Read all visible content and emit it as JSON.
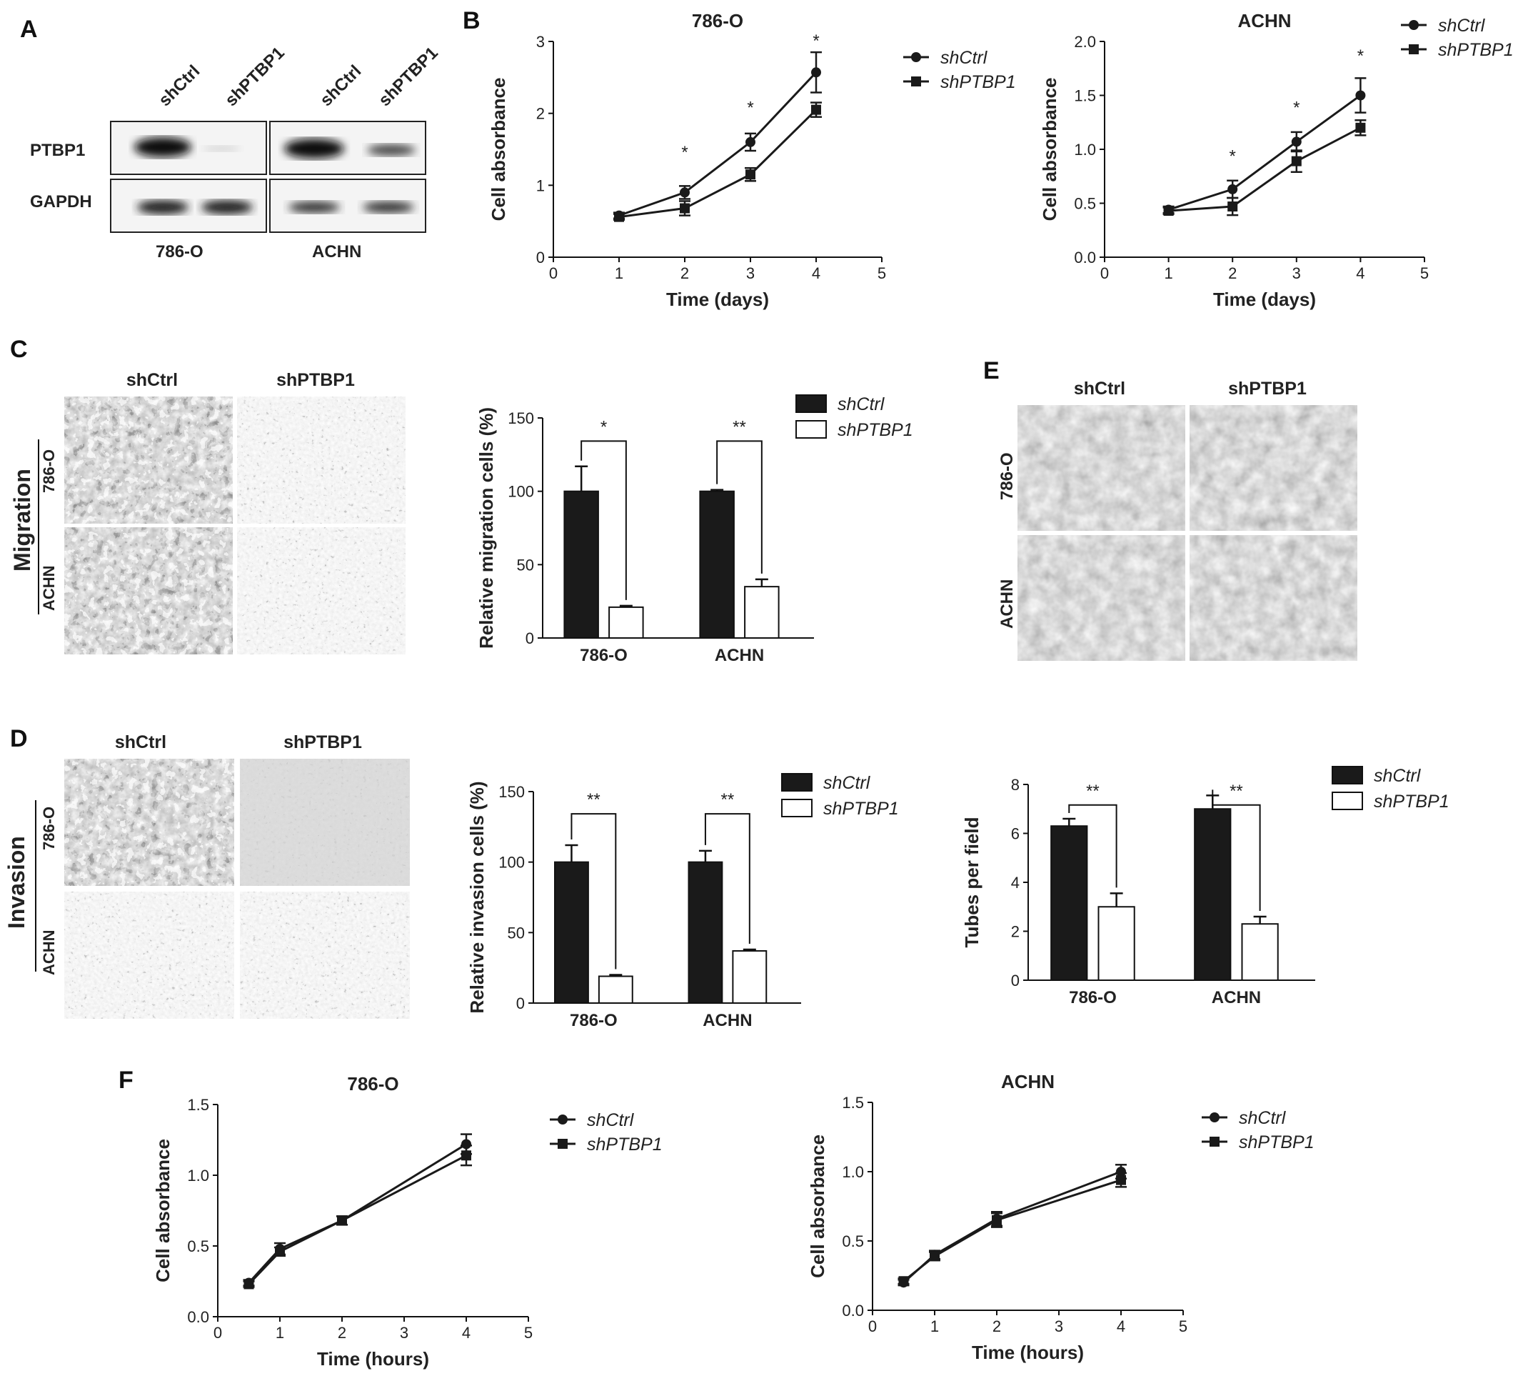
{
  "panels": {
    "A": "A",
    "B": "B",
    "C": "C",
    "D": "D",
    "E": "E",
    "F": "F"
  },
  "colors": {
    "ctrl_bar": "#1a1a1a",
    "ptbp1_bar": "#ffffff",
    "line": "#1a1a1a"
  },
  "western": {
    "lanes": [
      "shCtrl",
      "shPTBP1",
      "shCtrl",
      "shPTBP1"
    ],
    "rows": [
      "PTBP1",
      "GAPDH"
    ],
    "cell_lines": [
      "786-O",
      "ACHN"
    ]
  },
  "images": {
    "C": {
      "cols": [
        "shCtrl",
        "shPTBP1"
      ],
      "rows": [
        "786-O",
        "ACHN"
      ],
      "group": "Migration"
    },
    "D": {
      "cols": [
        "shCtrl",
        "shPTBP1"
      ],
      "rows": [
        "786-O",
        "ACHN"
      ],
      "group": "Invasion"
    },
    "E": {
      "cols": [
        "shCtrl",
        "shPTBP1"
      ],
      "rows": [
        "786-O",
        "ACHN"
      ]
    }
  },
  "chart_data": [
    {
      "id": "B1",
      "type": "line",
      "title": "786-O",
      "xlabel": "Time (days)",
      "ylabel": "Cell absorbance",
      "xlim": [
        0,
        5
      ],
      "ylim": [
        0,
        3
      ],
      "xticks": [
        "0",
        "1",
        "2",
        "3",
        "4",
        "5"
      ],
      "yticks": [
        "0",
        "1",
        "2",
        "3"
      ],
      "x": [
        1,
        2,
        3,
        4
      ],
      "series": [
        {
          "name": "shCtrl",
          "marker": "circle",
          "values": [
            0.58,
            0.9,
            1.6,
            2.57
          ],
          "err": [
            0.04,
            0.09,
            0.12,
            0.28
          ]
        },
        {
          "name": "shPTBP1",
          "marker": "square",
          "values": [
            0.56,
            0.68,
            1.15,
            2.05
          ],
          "err": [
            0.04,
            0.1,
            0.09,
            0.1
          ]
        }
      ],
      "annotations": [
        {
          "x": 2,
          "y": 1.48,
          "text": "*"
        },
        {
          "x": 3,
          "y": 2.1,
          "text": "*"
        },
        {
          "x": 4,
          "y": 3.03,
          "text": "*"
        }
      ],
      "legend": "right"
    },
    {
      "id": "B2",
      "type": "line",
      "title": "ACHN",
      "xlabel": "Time (days)",
      "ylabel": "Cell absorbance",
      "xlim": [
        0,
        5
      ],
      "ylim": [
        0,
        2
      ],
      "xticks": [
        "0",
        "1",
        "2",
        "3",
        "4",
        "5"
      ],
      "yticks": [
        "0.0",
        "0.5",
        "1.0",
        "1.5",
        "2.0"
      ],
      "x": [
        1,
        2,
        3,
        4
      ],
      "series": [
        {
          "name": "shCtrl",
          "marker": "circle",
          "values": [
            0.44,
            0.63,
            1.07,
            1.5
          ],
          "err": [
            0.03,
            0.08,
            0.09,
            0.16
          ]
        },
        {
          "name": "shPTBP1",
          "marker": "square",
          "values": [
            0.43,
            0.47,
            0.89,
            1.2
          ],
          "err": [
            0.03,
            0.08,
            0.1,
            0.07
          ]
        }
      ],
      "annotations": [
        {
          "x": 2,
          "y": 0.95,
          "text": "*"
        },
        {
          "x": 3,
          "y": 1.4,
          "text": "*"
        },
        {
          "x": 4,
          "y": 1.88,
          "text": "*"
        }
      ],
      "legend": "top-right"
    },
    {
      "id": "C",
      "type": "bar",
      "categories": [
        "786-O",
        "ACHN"
      ],
      "ylabel": "Relative migration cells (%)",
      "ylim": [
        0,
        150
      ],
      "yticks": [
        "0",
        "50",
        "100",
        "150"
      ],
      "series": [
        {
          "name": "shCtrl",
          "values": [
            100,
            100
          ],
          "err": [
            17,
            1
          ]
        },
        {
          "name": "shPTBP1",
          "values": [
            21,
            35
          ],
          "err": [
            1,
            5
          ]
        }
      ],
      "significance": [
        "*",
        "**"
      ],
      "legend": "right"
    },
    {
      "id": "D",
      "type": "bar",
      "categories": [
        "786-O",
        "ACHN"
      ],
      "ylabel": "Relative invasion cells (%)",
      "ylim": [
        0,
        150
      ],
      "yticks": [
        "0",
        "50",
        "100",
        "150"
      ],
      "series": [
        {
          "name": "shCtrl",
          "values": [
            100,
            100
          ],
          "err": [
            12,
            8
          ]
        },
        {
          "name": "shPTBP1",
          "values": [
            19,
            37
          ],
          "err": [
            1,
            1
          ]
        }
      ],
      "significance": [
        "**",
        "**"
      ],
      "legend": "right"
    },
    {
      "id": "E",
      "type": "bar",
      "categories": [
        "786-O",
        "ACHN"
      ],
      "ylabel": "Tubes per field",
      "ylim": [
        0,
        8
      ],
      "yticks": [
        "0",
        "2",
        "4",
        "6",
        "8"
      ],
      "series": [
        {
          "name": "shCtrl",
          "values": [
            6.3,
            7.0
          ],
          "err": [
            0.3,
            0.55
          ]
        },
        {
          "name": "shPTBP1",
          "values": [
            3.0,
            2.3
          ],
          "err": [
            0.55,
            0.3
          ]
        }
      ],
      "significance": [
        "**",
        "**"
      ],
      "legend": "right"
    },
    {
      "id": "F1",
      "type": "line",
      "title": "786-O",
      "xlabel": "Time (hours)",
      "ylabel": "Cell absorbance",
      "xlim": [
        0,
        5
      ],
      "ylim": [
        0,
        1.5
      ],
      "xticks": [
        "0",
        "1",
        "2",
        "3",
        "4",
        "5"
      ],
      "yticks": [
        "0.0",
        "0.5",
        "1.0",
        "1.5"
      ],
      "x": [
        0.5,
        1,
        2,
        4
      ],
      "series": [
        {
          "name": "shCtrl",
          "marker": "circle",
          "values": [
            0.24,
            0.48,
            0.68,
            1.22
          ],
          "err": [
            0.02,
            0.04,
            0.03,
            0.07
          ]
        },
        {
          "name": "shPTBP1",
          "marker": "square",
          "values": [
            0.23,
            0.46,
            0.68,
            1.14
          ],
          "err": [
            0.02,
            0.03,
            0.03,
            0.07
          ]
        }
      ],
      "legend": "right"
    },
    {
      "id": "F2",
      "type": "line",
      "title": "ACHN",
      "xlabel": "Time (hours)",
      "ylabel": "Cell absorbance",
      "xlim": [
        0,
        5
      ],
      "ylim": [
        0,
        1.5
      ],
      "xticks": [
        "0",
        "1",
        "2",
        "3",
        "4",
        "5"
      ],
      "yticks": [
        "0.0",
        "0.5",
        "1.0",
        "1.5"
      ],
      "x": [
        0.5,
        1,
        2,
        4
      ],
      "series": [
        {
          "name": "shCtrl",
          "marker": "circle",
          "values": [
            0.2,
            0.4,
            0.66,
            1.0
          ],
          "err": [
            0.02,
            0.03,
            0.05,
            0.05
          ]
        },
        {
          "name": "shPTBP1",
          "marker": "square",
          "values": [
            0.21,
            0.39,
            0.65,
            0.94
          ],
          "err": [
            0.02,
            0.03,
            0.05,
            0.05
          ]
        }
      ],
      "legend": "right"
    }
  ]
}
